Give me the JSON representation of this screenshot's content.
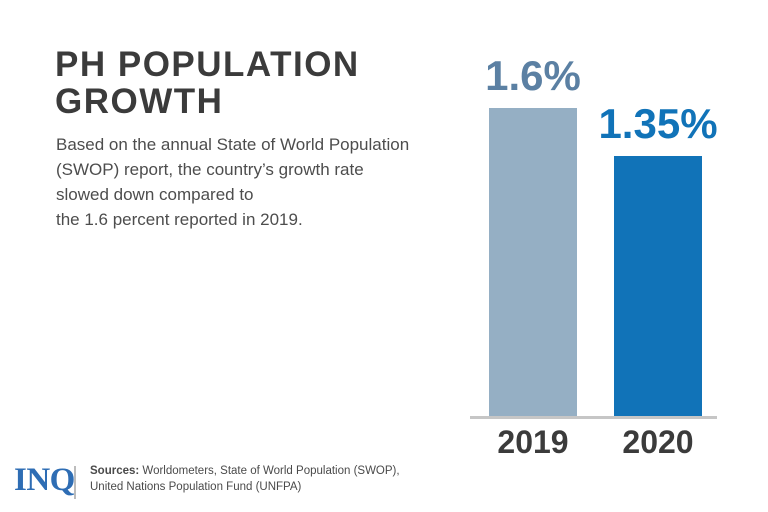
{
  "header": {
    "title": "PH POPULATION\nGROWTH",
    "description": "Based on the annual State of World Population\n(SWOP) report, the country’s growth rate\nslowed down compared to\nthe 1.6 percent reported in 2019."
  },
  "chart_data": {
    "type": "bar",
    "title": "PH POPULATION GROWTH",
    "categories": [
      "2019",
      "2020"
    ],
    "values": [
      1.6,
      1.35
    ],
    "value_labels": [
      "1.6%",
      "1.35%"
    ],
    "unit": "percent",
    "ylim": [
      0,
      1.6
    ],
    "grid": false,
    "legend": false,
    "bar_colors": [
      "#95afc4",
      "#1173b8"
    ],
    "value_label_colors": [
      "#5b80a3",
      "#1173b8"
    ],
    "category_label_color": "#3b3b3b",
    "baseline_color": "#c6c6c6"
  },
  "footer": {
    "logo": "INQ",
    "sources_label": "Sources:",
    "sources_text": "Worldometers, State of World Population (SWOP),\nUnited Nations Population Fund (UNFPA)"
  },
  "colors": {
    "background": "#ffffff",
    "title_text": "#3b3b3b",
    "body_text": "#4d4d4d",
    "logo_blue": "#2e6db4"
  }
}
